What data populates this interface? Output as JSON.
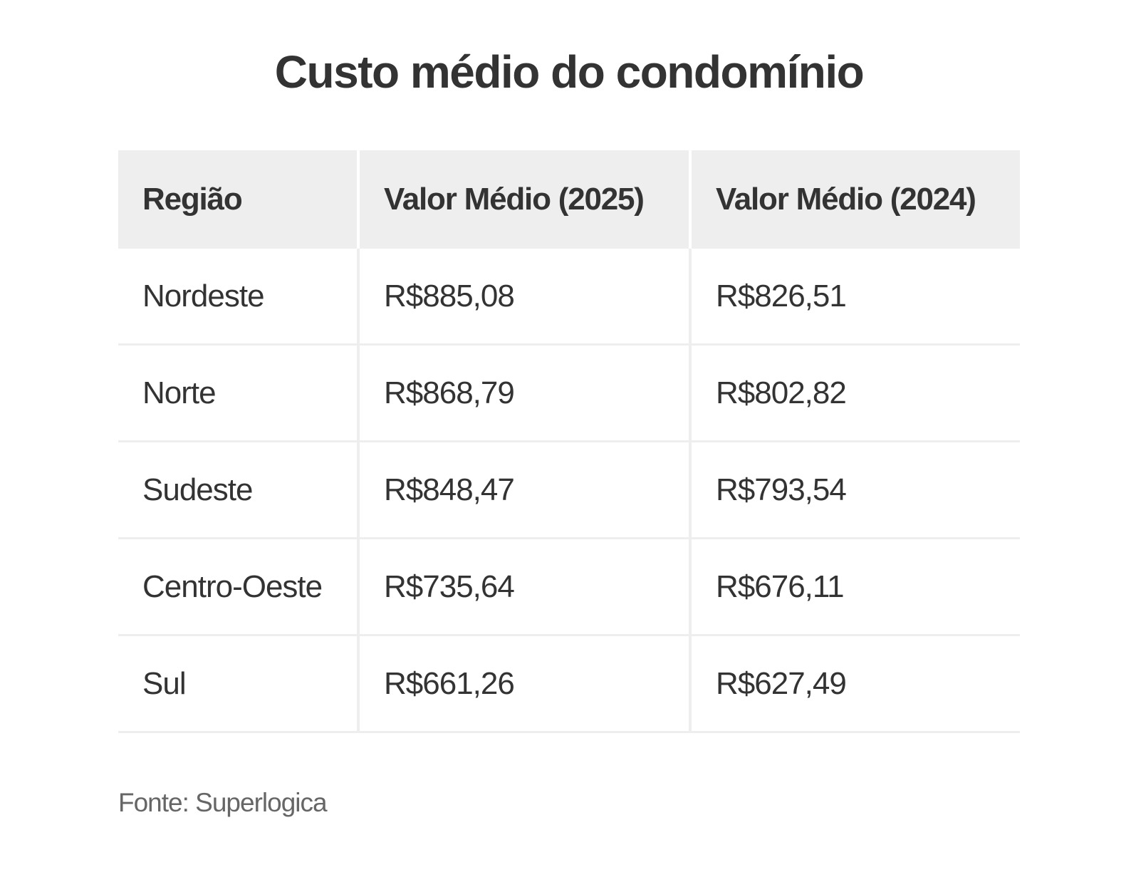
{
  "title": "Custo médio do condomínio",
  "table": {
    "headers": [
      "Região",
      "Valor Médio (2025)",
      "Valor Médio (2024)"
    ],
    "rows": [
      [
        "Nordeste",
        "R$885,08",
        "R$826,51"
      ],
      [
        "Norte",
        "R$868,79",
        "R$802,82"
      ],
      [
        "Sudeste",
        "R$848,47",
        "R$793,54"
      ],
      [
        "Centro-Oeste",
        "R$735,64",
        "R$676,11"
      ],
      [
        "Sul",
        "R$661,26",
        "R$627,49"
      ]
    ]
  },
  "source": "Fonte: Superlogica",
  "colors": {
    "text": "#333333",
    "header_bg": "#eeeeee",
    "border": "#eeeeee",
    "source_text": "#666666"
  }
}
